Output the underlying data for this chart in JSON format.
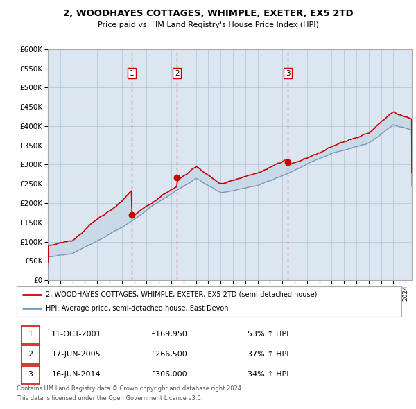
{
  "title": "2, WOODHAYES COTTAGES, WHIMPLE, EXETER, EX5 2TD",
  "subtitle": "Price paid vs. HM Land Registry's House Price Index (HPI)",
  "red_label": "2, WOODHAYES COTTAGES, WHIMPLE, EXETER, EX5 2TD (semi-detached house)",
  "blue_label": "HPI: Average price, semi-detached house, East Devon",
  "footer1": "Contains HM Land Registry data © Crown copyright and database right 2024.",
  "footer2": "This data is licensed under the Open Government Licence v3.0.",
  "transactions": [
    {
      "num": 1,
      "date": "11-OCT-2001",
      "price": 169950,
      "pct": "53%",
      "dir": "↑"
    },
    {
      "num": 2,
      "date": "17-JUN-2005",
      "price": 266500,
      "pct": "37%",
      "dir": "↑"
    },
    {
      "num": 3,
      "date": "16-JUN-2014",
      "price": 306000,
      "pct": "34%",
      "dir": "↑"
    }
  ],
  "transaction_years": [
    2001.79,
    2005.46,
    2014.46
  ],
  "transaction_prices": [
    169950,
    266500,
    306000
  ],
  "red_color": "#cc0000",
  "blue_color": "#7799bb",
  "fill_color": "#c8d8e8",
  "dashed_color": "#cc0000",
  "plot_bg": "#dce6f1",
  "grid_color": "#b0c0d0",
  "ylim": [
    0,
    600000
  ],
  "xlim_start": 1995.0,
  "xlim_end": 2024.5,
  "ytick_step": 50000
}
